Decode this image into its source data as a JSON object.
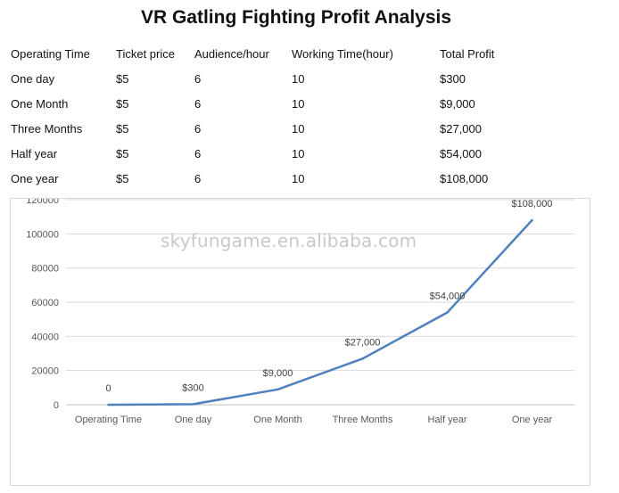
{
  "title": "VR Gatling Fighting Profit Analysis",
  "table": {
    "headers": [
      "Operating Time",
      "Ticket price",
      "Audience/hour",
      "Working Time(hour)",
      "Total Profit"
    ],
    "rows": [
      [
        "One day",
        "$5",
        "6",
        "10",
        "$300"
      ],
      [
        "One Month",
        "$5",
        "6",
        "10",
        "$9,000"
      ],
      [
        "Three Months",
        "$5",
        "6",
        "10",
        "$27,000"
      ],
      [
        "Half year",
        "$5",
        "6",
        "10",
        "$54,000"
      ],
      [
        "One year",
        "$5",
        "6",
        "10",
        "$108,000"
      ]
    ]
  },
  "watermark": "skyfungame.en.alibaba.com",
  "chart_data": {
    "type": "line",
    "categories": [
      "Operating Time",
      "One day",
      "One Month",
      "Three Months",
      "Half year",
      "One year"
    ],
    "values": [
      0,
      300,
      9000,
      27000,
      54000,
      108000
    ],
    "data_labels": [
      "0",
      "$300",
      "$9,000",
      "$27,000",
      "$54,000",
      "$108,000"
    ],
    "ylim": [
      0,
      120000
    ],
    "yticks": [
      0,
      20000,
      40000,
      60000,
      80000,
      100000,
      120000
    ],
    "grid": true,
    "line_color": "#4f81bd",
    "gridline_color": "#d9d9d9"
  }
}
